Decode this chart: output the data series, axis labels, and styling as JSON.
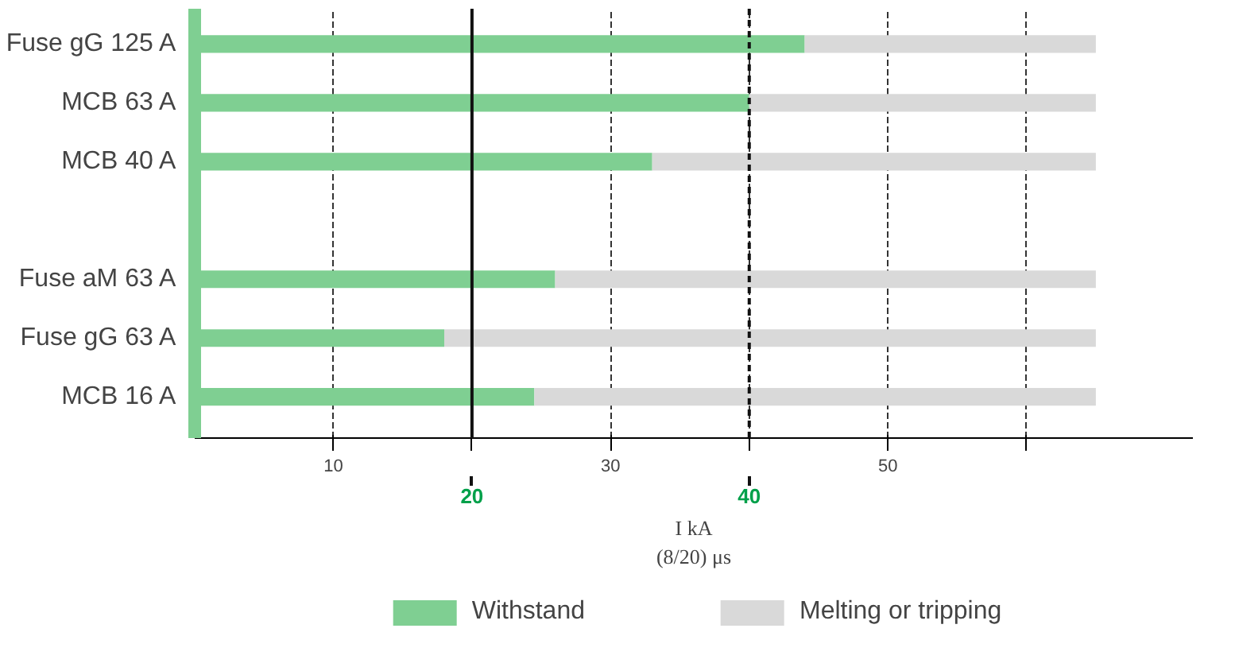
{
  "chart_data": {
    "type": "bar",
    "orientation": "horizontal",
    "stacked": true,
    "categories": [
      "Fuse gG 125 A",
      "MCB 63 A",
      "MCB 40 A",
      null,
      "Fuse aM 63 A",
      "Fuse gG 63 A",
      "MCB 16 A"
    ],
    "series": [
      {
        "name": "Withstand",
        "color": "#7fcf92",
        "values": [
          44,
          40,
          33,
          null,
          26,
          18,
          24.5
        ]
      },
      {
        "name": "Melting or tripping",
        "color": "#d9d9d9",
        "values": [
          21,
          25,
          32,
          null,
          39,
          47,
          40.5
        ]
      }
    ],
    "xlabel": "I kA\n(8/20) μs",
    "xlim": [
      0,
      72
    ],
    "xticks": [
      10,
      {
        "value": 20,
        "label": null
      },
      30,
      {
        "value": 40,
        "label": null
      },
      50,
      {
        "value": 60,
        "label": null
      }
    ],
    "grid": "x",
    "legend": "bottom",
    "ref_lines": [
      {
        "axis": "x",
        "value": 40,
        "label": "40",
        "color": "#111111",
        "line_style": "dashed"
      },
      {
        "axis": "x",
        "value": 20,
        "label": "20",
        "color": "#111111",
        "line_style": "solid"
      }
    ]
  }
}
